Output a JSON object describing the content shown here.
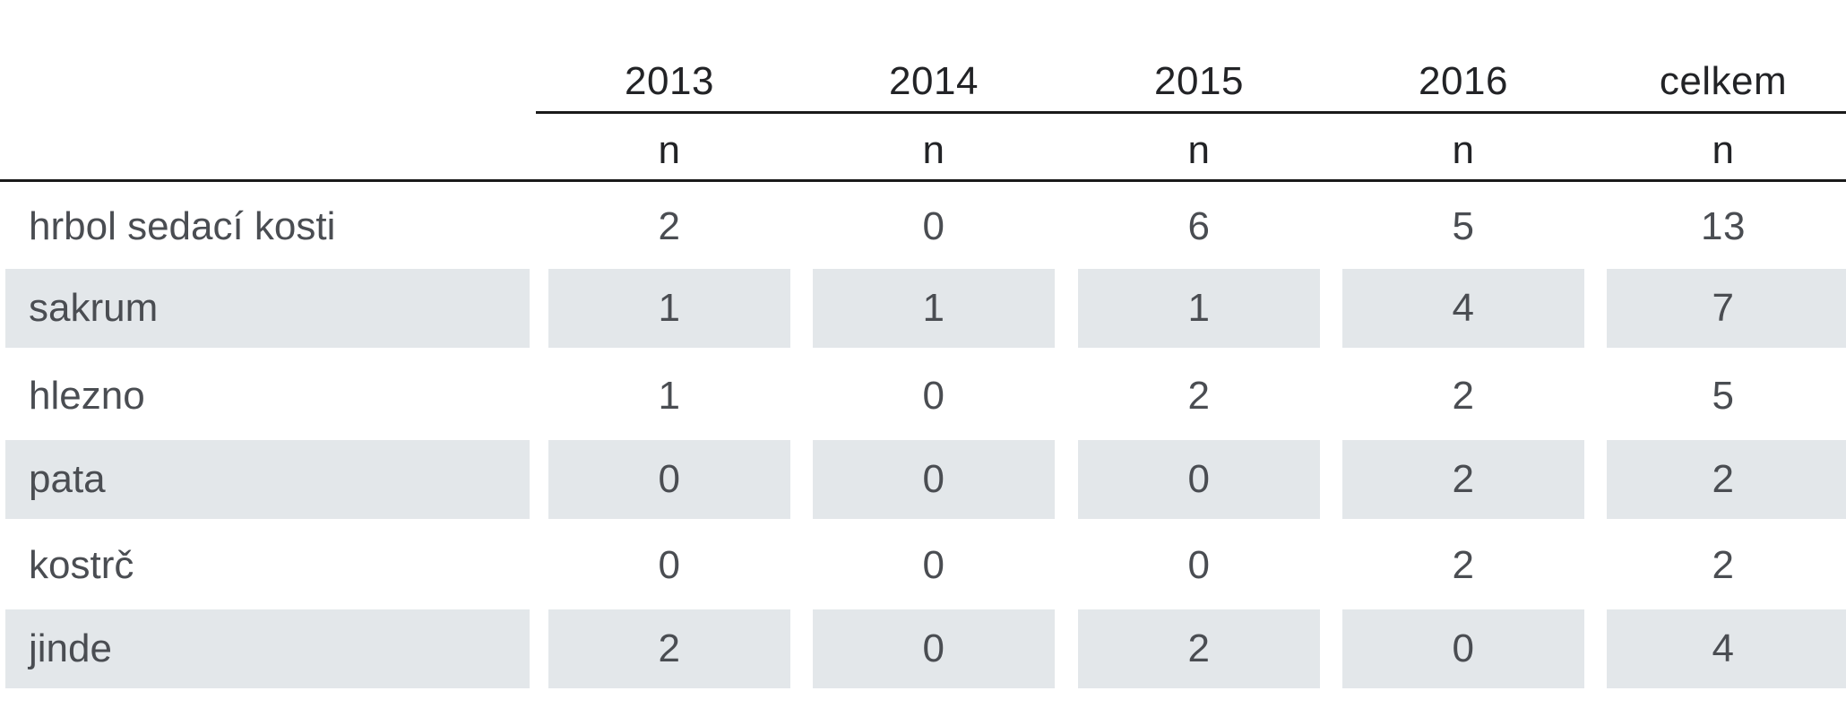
{
  "table": {
    "years": [
      "2013",
      "2014",
      "2015",
      "2016",
      "celkem"
    ],
    "units": [
      "n",
      "n",
      "n",
      "n",
      "n"
    ],
    "rows": [
      {
        "label": "hrbol sedací kosti",
        "values": [
          "2",
          "0",
          "6",
          "5",
          "13"
        ],
        "shaded": false
      },
      {
        "label": "sakrum",
        "values": [
          "1",
          "1",
          "1",
          "4",
          "7"
        ],
        "shaded": true
      },
      {
        "label": "hlezno",
        "values": [
          "1",
          "0",
          "2",
          "2",
          "5"
        ],
        "shaded": false
      },
      {
        "label": "pata",
        "values": [
          "0",
          "0",
          "0",
          "2",
          "2"
        ],
        "shaded": true
      },
      {
        "label": "kostrč",
        "values": [
          "0",
          "0",
          "0",
          "2",
          "2"
        ],
        "shaded": false
      },
      {
        "label": "jinde",
        "values": [
          "2",
          "0",
          "2",
          "0",
          "4"
        ],
        "shaded": true
      }
    ]
  },
  "colors": {
    "shade": "#e3e7ea",
    "text": "#4a4d52",
    "rule": "#1a1a1a"
  }
}
